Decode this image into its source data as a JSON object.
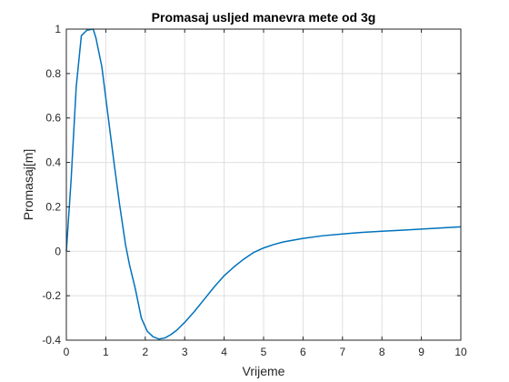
{
  "chart_data": {
    "type": "line",
    "title": "Promasaj usljed manevra mete od 3g",
    "xlabel": "Vrijeme",
    "ylabel": "Promasaj[m]",
    "xlim": [
      0,
      10
    ],
    "ylim": [
      -0.4,
      1
    ],
    "xticks": [
      0,
      1,
      2,
      3,
      4,
      5,
      6,
      7,
      8,
      9,
      10
    ],
    "xtick_labels": [
      "0",
      "1",
      "2",
      "3",
      "4",
      "5",
      "6",
      "7",
      "8",
      "9",
      "10"
    ],
    "yticks": [
      -0.4,
      -0.2,
      0,
      0.2,
      0.4,
      0.6,
      0.8,
      1
    ],
    "ytick_labels": [
      "-0.4",
      "-0.2",
      "0",
      "0.2",
      "0.4",
      "0.6",
      "0.8",
      "1"
    ],
    "grid": true,
    "grid_color": "#dfdfdf",
    "axis_color": "#262626",
    "series": [
      {
        "color": "#0072bd",
        "x": [
          0,
          0.12,
          0.25,
          0.38,
          0.52,
          0.68,
          0.75,
          0.9,
          1.05,
          1.2,
          1.35,
          1.5,
          1.6,
          1.75,
          1.9,
          2.05,
          2.2,
          2.35,
          2.5,
          2.65,
          2.8,
          3.0,
          3.25,
          3.5,
          3.75,
          4.0,
          4.25,
          4.5,
          4.75,
          5.0,
          5.25,
          5.5,
          6.0,
          6.5,
          7.0,
          7.5,
          8.0,
          8.5,
          9.0,
          9.5,
          10.0
        ],
        "y": [
          0,
          0.32,
          0.74,
          0.97,
          0.995,
          1.0,
          0.96,
          0.83,
          0.62,
          0.41,
          0.21,
          0.03,
          -0.06,
          -0.17,
          -0.3,
          -0.36,
          -0.385,
          -0.395,
          -0.39,
          -0.375,
          -0.355,
          -0.32,
          -0.27,
          -0.215,
          -0.16,
          -0.11,
          -0.07,
          -0.035,
          -0.005,
          0.015,
          0.03,
          0.042,
          0.058,
          0.07,
          0.078,
          0.085,
          0.09,
          0.095,
          0.1,
          0.105,
          0.11
        ]
      }
    ]
  }
}
